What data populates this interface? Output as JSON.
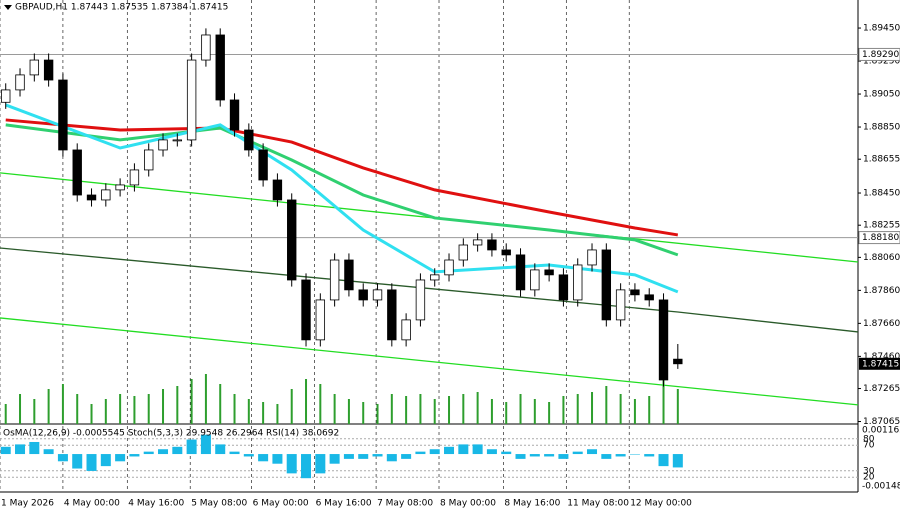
{
  "chart_data": {
    "type": "candlestick",
    "title": "GBPAUD,H1 1.87443 1.87535 1.87384 1.87415",
    "open": [
      1.89,
      1.89075,
      1.89166,
      1.89256,
      1.89135,
      1.88711,
      1.88438,
      1.88408,
      1.88469,
      1.88499,
      1.8859,
      1.88711,
      1.88772,
      1.88772,
      1.89256,
      1.89408,
      1.89014,
      1.88832,
      1.88711,
      1.88529,
      1.88408,
      1.87923,
      1.8756,
      1.87802,
      1.88044,
      1.87863,
      1.87802,
      1.87863,
      1.8756,
      1.87681,
      1.87923,
      1.87954,
      1.88044,
      1.88135,
      1.88166,
      1.88105,
      1.88075,
      1.87863,
      1.87984,
      1.87954,
      1.87802,
      1.88014,
      1.88105,
      1.87681,
      1.87863,
      1.87833,
      1.87802,
      1.87443
    ],
    "high": [
      1.89115,
      1.89206,
      1.89296,
      1.89296,
      1.89175,
      1.88751,
      1.88478,
      1.88509,
      1.88539,
      1.8863,
      1.88751,
      1.88812,
      1.88812,
      1.89296,
      1.89448,
      1.89448,
      1.89054,
      1.88872,
      1.88751,
      1.88569,
      1.88448,
      1.87963,
      1.87842,
      1.88084,
      1.88084,
      1.87903,
      1.87903,
      1.87903,
      1.87721,
      1.87963,
      1.87994,
      1.88084,
      1.88175,
      1.88206,
      1.88206,
      1.88145,
      1.88115,
      1.88024,
      1.88024,
      1.87994,
      1.88054,
      1.88145,
      1.88145,
      1.87903,
      1.87903,
      1.87873,
      1.87842,
      1.87535
    ],
    "low": [
      1.8896,
      1.89035,
      1.89126,
      1.89095,
      1.88671,
      1.88398,
      1.88368,
      1.88368,
      1.88429,
      1.88459,
      1.8855,
      1.88671,
      1.88732,
      1.88732,
      1.89216,
      1.88974,
      1.88792,
      1.88671,
      1.88489,
      1.88368,
      1.87883,
      1.8752,
      1.8752,
      1.87762,
      1.87823,
      1.87762,
      1.87762,
      1.8752,
      1.8752,
      1.87641,
      1.87883,
      1.87914,
      1.88004,
      1.88095,
      1.88065,
      1.88035,
      1.87823,
      1.87823,
      1.87914,
      1.87762,
      1.87762,
      1.87974,
      1.87641,
      1.87641,
      1.87793,
      1.87762,
      1.87277,
      1.87384
    ],
    "close": [
      1.89075,
      1.89166,
      1.89256,
      1.89135,
      1.88711,
      1.88438,
      1.88408,
      1.88469,
      1.88499,
      1.8859,
      1.88711,
      1.88772,
      1.88772,
      1.89256,
      1.89408,
      1.89014,
      1.88832,
      1.88711,
      1.88529,
      1.88408,
      1.87923,
      1.8756,
      1.87802,
      1.88044,
      1.87863,
      1.87802,
      1.87863,
      1.8756,
      1.87681,
      1.87923,
      1.87954,
      1.88044,
      1.88135,
      1.88166,
      1.88105,
      1.88075,
      1.87863,
      1.87984,
      1.87954,
      1.87802,
      1.88014,
      1.88105,
      1.87681,
      1.87863,
      1.87833,
      1.87802,
      1.87317,
      1.87415
    ],
    "volumes": [
      20,
      30,
      25,
      35,
      40,
      30,
      20,
      25,
      30,
      28,
      30,
      35,
      38,
      45,
      50,
      40,
      30,
      25,
      22,
      20,
      35,
      45,
      40,
      30,
      25,
      22,
      20,
      30,
      28,
      30,
      25,
      28,
      30,
      32,
      25,
      22,
      30,
      25,
      22,
      28,
      30,
      32,
      38,
      30,
      25,
      28,
      45,
      35
    ],
    "volume_lim": [
      0,
      100
    ],
    "volume_color": "#2e9e2e",
    "ma_index": [
      0,
      8,
      15,
      20,
      25,
      30,
      38,
      44,
      47
    ],
    "moving_averages": [
      {
        "color": "#e01010",
        "values": [
          1.88893,
          1.88832,
          1.88844,
          1.88759,
          1.88602,
          1.88469,
          1.88335,
          1.88238,
          1.88196
        ]
      },
      {
        "color": "#30d070",
        "values": [
          1.88863,
          1.88772,
          1.88844,
          1.8865,
          1.88438,
          1.88299,
          1.88226,
          1.88166,
          1.88075
        ]
      },
      {
        "color": "#30e0f0",
        "values": [
          1.88984,
          1.88723,
          1.88863,
          1.8859,
          1.88226,
          1.87972,
          1.88014,
          1.87954,
          1.87851
        ]
      }
    ],
    "trendlines": [
      {
        "color": "#22dd22",
        "x": [
          -0.4,
          59.6
        ],
        "y": [
          1.88572,
          1.88032
        ]
      },
      {
        "color": "#22dd22",
        "x": [
          -0.4,
          59.6
        ],
        "y": [
          1.87693,
          1.87166
        ]
      },
      {
        "color": "#2a5a2a",
        "x": [
          -0.4,
          47,
          59.6
        ],
        "y": [
          1.88117,
          1.87729,
          1.87608
        ]
      }
    ],
    "hlines": [
      {
        "value": 1.8929,
        "label": "1.89290"
      },
      {
        "value": 1.8818,
        "label": "1.88180"
      }
    ],
    "price_marker": {
      "value": 1.87415,
      "label": "1.87415"
    },
    "xlim": [
      -0.4,
      59.6
    ],
    "ylim": [
      1.8705,
      1.8962
    ],
    "yticks": [
      {
        "value": 1.8945,
        "label": "1.89450"
      },
      {
        "value": 1.8925,
        "label": "1.89250"
      },
      {
        "value": 1.8905,
        "label": "1.89050"
      },
      {
        "value": 1.8885,
        "label": "1.88850"
      },
      {
        "value": 1.88655,
        "label": "1.88655"
      },
      {
        "value": 1.8845,
        "label": "1.88450"
      },
      {
        "value": 1.88255,
        "label": "1.88255"
      },
      {
        "value": 1.8806,
        "label": "1.88060"
      },
      {
        "value": 1.8786,
        "label": "1.87860"
      },
      {
        "value": 1.8766,
        "label": "1.87660"
      },
      {
        "value": 1.8746,
        "label": "1.87460"
      },
      {
        "value": 1.87265,
        "label": "1.87265"
      },
      {
        "value": 1.87065,
        "label": "1.87065"
      }
    ],
    "xticks": [
      {
        "value": -0.4,
        "label": "1 May 2026"
      },
      {
        "value": 4.0,
        "label": "4 May 00:00"
      },
      {
        "value": 8.5,
        "label": "4 May 16:00"
      },
      {
        "value": 12.9,
        "label": "5 May 08:00"
      },
      {
        "value": 17.2,
        "label": "6 May 00:00"
      },
      {
        "value": 21.6,
        "label": "6 May 16:00"
      },
      {
        "value": 25.9,
        "label": "7 May 08:00"
      },
      {
        "value": 30.3,
        "label": "8 May 00:00"
      },
      {
        "value": 34.8,
        "label": "8 May 16:00"
      },
      {
        "value": 39.2,
        "label": "11 May 08:00"
      },
      {
        "value": 43.6,
        "label": "12 May 00:00"
      }
    ],
    "indicator": {
      "title": "OsMA(12,26,9) -0.0005545  Stoch(5,3,3) 29.9548 26.2964  RSI(14) 38.0692",
      "color": "#19b8e6",
      "values": [
        0.0003,
        0.0004,
        0.0005,
        0.0002,
        -0.0003,
        -0.0006,
        -0.0007,
        -0.0005,
        -0.0003,
        -0.0001,
        0.0001,
        0.0002,
        0.0003,
        0.0006,
        0.0008,
        0.0004,
        0.0001,
        -0.0001,
        -0.0003,
        -0.0004,
        -0.0008,
        -0.001,
        -0.0008,
        -0.0004,
        -0.0002,
        -0.0002,
        -0.0001,
        -0.0003,
        -0.0002,
        0.0001,
        0.0002,
        0.0003,
        0.0004,
        0.0004,
        0.0002,
        0.0001,
        -0.0002,
        -0.0001,
        -0.0001,
        -0.0002,
        0.0001,
        0.0002,
        -0.0002,
        -0.0001,
        0,
        -0.0001,
        -0.0005,
        -0.0005545
      ],
      "ylim": [
        -0.001489,
        0.001162
      ],
      "yticks": [
        0.001162,
        -0.001489
      ],
      "level_lim": [
        0,
        100
      ],
      "levels": [
        80,
        70,
        30,
        20
      ]
    }
  }
}
